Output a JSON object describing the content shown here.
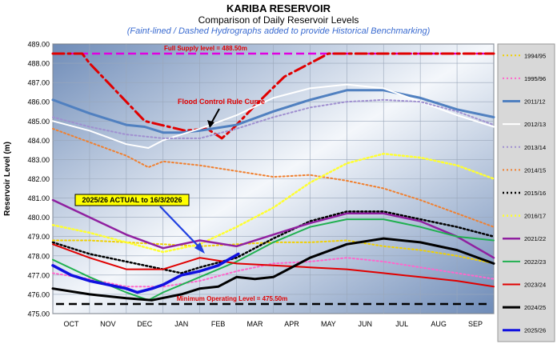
{
  "header": {
    "title": "KARIBA  RESERVOIR",
    "subtitle": "Comparison of Daily Reservoir Levels",
    "note": "(Faint-lined / Dashed Hydrographs added to provide Historical Benchmarking)"
  },
  "chart_data": {
    "type": "line",
    "ylabel": "Reservoir Level (m)",
    "ylim": [
      475.0,
      489.0
    ],
    "yticks": [
      "475.00",
      "476.00",
      "477.00",
      "478.00",
      "479.00",
      "480.00",
      "481.00",
      "482.00",
      "483.00",
      "484.00",
      "485.00",
      "486.00",
      "487.00",
      "488.00",
      "489.00"
    ],
    "xlim": [
      0,
      12
    ],
    "x_categories": [
      "OCT",
      "NOV",
      "DEC",
      "JAN",
      "FEB",
      "MAR",
      "APR",
      "MAY",
      "JUN",
      "JUL",
      "AUG",
      "SEP"
    ],
    "grid": true,
    "legend_position": "right",
    "reference_lines": [
      {
        "name": "Full Supply level",
        "label": "Full Supply level = 488.50m",
        "y": 488.5,
        "color": "#e000e0",
        "dash": "10,5"
      },
      {
        "name": "Minimum Operating Level",
        "label": "Minimum  Operating Level = 475.50m",
        "y": 475.5,
        "color": "#000000",
        "dash": "10,6"
      }
    ],
    "annotations": [
      {
        "text": "Flood Control Rule Curve",
        "color": "#e00000"
      },
      {
        "text": "2025/26 ACTUAL to 16/3/2026",
        "color": "#000000",
        "background": "#ffff00"
      }
    ],
    "series": [
      {
        "name": "Flood Control Rule Curve",
        "color": "#e00000",
        "style": "dashdot",
        "width": 3,
        "legend": false,
        "x": [
          0.0,
          0.8,
          1.0,
          1.5,
          2.5,
          3.6,
          4.2,
          4.6,
          4.9,
          5.5,
          6.3,
          7.0,
          7.5,
          8.0,
          9.0,
          10.0,
          11.0,
          12.0
        ],
        "y": [
          488.5,
          488.5,
          488.0,
          487.0,
          485.0,
          484.5,
          484.6,
          484.1,
          484.6,
          485.8,
          487.3,
          488.0,
          488.5,
          488.5,
          488.5,
          488.5,
          488.5,
          488.5
        ]
      },
      {
        "name": "1994/95",
        "color": "#f0d000",
        "style": "dot",
        "width": 2,
        "legend": true,
        "x": [
          0,
          1,
          2,
          3,
          4,
          5,
          6,
          7,
          8,
          9,
          10,
          11,
          12
        ],
        "y": [
          478.8,
          478.8,
          478.7,
          478.6,
          478.5,
          478.6,
          478.7,
          478.7,
          478.8,
          478.5,
          478.3,
          478.0,
          477.6
        ]
      },
      {
        "name": "1995/96",
        "color": "#ff66cc",
        "style": "dot",
        "width": 2,
        "legend": true,
        "x": [
          0,
          1,
          2,
          3,
          4,
          5,
          6,
          7,
          8,
          9,
          10,
          11,
          12
        ],
        "y": [
          477.1,
          476.8,
          476.4,
          476.4,
          476.7,
          477.2,
          477.6,
          477.7,
          477.9,
          477.7,
          477.4,
          477.1,
          476.8
        ]
      },
      {
        "name": "2011/12",
        "color": "#5080c0",
        "style": "solid",
        "width": 3,
        "legend": true,
        "x": [
          0,
          1,
          2,
          2.5,
          3,
          3.5,
          4,
          5,
          6,
          7,
          8,
          9,
          10,
          11,
          12
        ],
        "y": [
          486.1,
          485.4,
          484.8,
          484.7,
          484.4,
          484.4,
          484.5,
          484.8,
          485.5,
          486.1,
          486.6,
          486.6,
          486.2,
          485.6,
          485.2
        ]
      },
      {
        "name": "2012/13",
        "color": "#ffffff",
        "style": "solid",
        "width": 2,
        "legend": true,
        "x": [
          0,
          1,
          2,
          2.6,
          3,
          3.5,
          4,
          5,
          6,
          7,
          8,
          9,
          10,
          11,
          12
        ],
        "y": [
          485.0,
          484.5,
          483.8,
          483.6,
          484.0,
          484.3,
          484.6,
          485.3,
          486.2,
          486.7,
          486.9,
          486.7,
          486.0,
          485.3,
          484.7
        ]
      },
      {
        "name": "2013/14",
        "color": "#a090d0",
        "style": "dot",
        "width": 2,
        "legend": true,
        "x": [
          0,
          1,
          2,
          3,
          4,
          5,
          6,
          7,
          8,
          9,
          10,
          11,
          12
        ],
        "y": [
          485.2,
          484.7,
          484.3,
          484.1,
          484.1,
          484.6,
          485.2,
          485.7,
          486.0,
          486.1,
          486.0,
          485.5,
          484.8
        ]
      },
      {
        "name": "2014/15",
        "color": "#f08030",
        "style": "dot",
        "width": 2,
        "legend": true,
        "x": [
          0,
          1,
          2,
          2.6,
          3,
          4,
          5,
          6,
          7,
          8,
          9,
          10,
          11,
          12
        ],
        "y": [
          484.6,
          483.9,
          483.2,
          482.6,
          482.9,
          482.7,
          482.4,
          482.1,
          482.2,
          481.9,
          481.5,
          480.9,
          480.2,
          479.5
        ]
      },
      {
        "name": "2015/16",
        "color": "#000000",
        "style": "dot",
        "width": 2.5,
        "legend": true,
        "x": [
          0,
          1,
          2,
          3,
          3.5,
          4,
          5,
          6,
          7,
          8,
          9,
          10,
          11,
          12
        ],
        "y": [
          478.7,
          478.1,
          477.7,
          477.3,
          477.1,
          477.4,
          477.9,
          478.9,
          479.8,
          480.3,
          480.3,
          479.9,
          479.5,
          479.0
        ]
      },
      {
        "name": "2016/17",
        "color": "#ffff30",
        "style": "dot",
        "width": 2.5,
        "legend": true,
        "x": [
          0,
          1,
          2,
          3,
          4,
          5,
          6,
          7,
          8,
          9,
          10,
          11,
          12
        ],
        "y": [
          479.6,
          479.2,
          478.7,
          478.2,
          478.6,
          479.5,
          480.5,
          481.8,
          482.8,
          483.3,
          483.1,
          482.7,
          482.0
        ]
      },
      {
        "name": "2021/22",
        "color": "#9020a0",
        "style": "solid",
        "width": 2.5,
        "legend": true,
        "x": [
          0,
          1,
          2,
          3,
          4,
          5,
          6,
          7,
          8,
          9,
          10,
          11,
          12
        ],
        "y": [
          480.9,
          480.0,
          479.1,
          478.4,
          478.8,
          478.5,
          479.1,
          479.7,
          480.2,
          480.2,
          479.8,
          479.0,
          477.9
        ]
      },
      {
        "name": "2022/23",
        "color": "#20b050",
        "style": "solid",
        "width": 2,
        "legend": true,
        "x": [
          0,
          1,
          2,
          2.6,
          3,
          4,
          5,
          6,
          7,
          8,
          9,
          10,
          11,
          12
        ],
        "y": [
          477.8,
          476.9,
          476.1,
          475.7,
          476.1,
          476.9,
          477.7,
          478.7,
          479.5,
          479.9,
          479.9,
          479.5,
          479.0,
          478.8
        ]
      },
      {
        "name": "2023/24",
        "color": "#e00000",
        "style": "solid",
        "width": 2,
        "legend": true,
        "x": [
          0,
          1,
          2,
          3,
          4,
          5,
          6,
          7,
          8,
          9,
          10,
          11,
          12
        ],
        "y": [
          478.6,
          477.9,
          477.3,
          477.3,
          477.9,
          477.6,
          477.5,
          477.4,
          477.3,
          477.1,
          476.9,
          476.7,
          476.4
        ]
      },
      {
        "name": "2024/25",
        "color": "#000000",
        "style": "solid",
        "width": 3,
        "legend": true,
        "x": [
          0,
          1,
          2,
          2.7,
          3.5,
          4,
          4.5,
          5,
          5.5,
          6,
          7,
          8,
          9,
          10,
          11,
          12
        ],
        "y": [
          476.3,
          476.0,
          475.8,
          475.7,
          476.0,
          476.3,
          476.4,
          476.9,
          476.8,
          476.9,
          477.9,
          478.6,
          478.9,
          478.7,
          478.3,
          477.6
        ]
      },
      {
        "name": "2025/26",
        "color": "#1010e0",
        "style": "solid",
        "width": 3.5,
        "legend": true,
        "x": [
          0,
          0.5,
          1,
          1.5,
          2,
          2.3,
          2.7,
          3,
          3.5,
          4,
          4.5,
          5.05
        ],
        "y": [
          477.5,
          477.0,
          476.7,
          476.5,
          476.3,
          476.1,
          476.3,
          476.5,
          477.0,
          477.2,
          477.5,
          478.1
        ]
      }
    ]
  }
}
